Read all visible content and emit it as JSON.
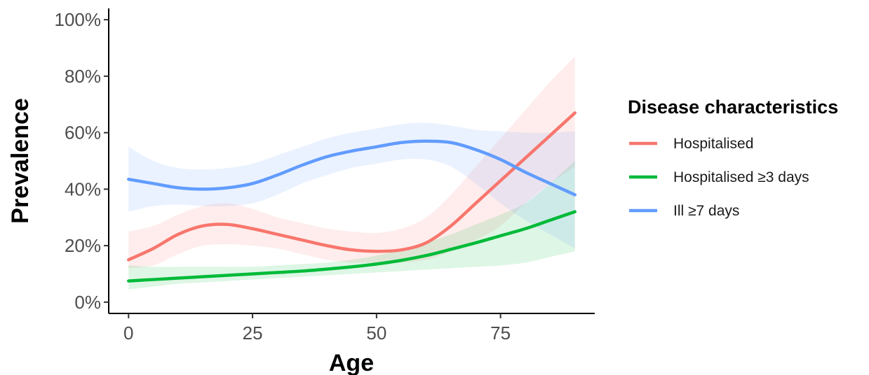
{
  "chart_data": {
    "type": "line",
    "title": "",
    "xlabel": "Age",
    "ylabel": "Prevalence",
    "xlim": [
      -4,
      94
    ],
    "ylim": [
      -4,
      104
    ],
    "x_ticks": [
      0,
      25,
      50,
      75
    ],
    "y_ticks": [
      0,
      20,
      40,
      60,
      80,
      100
    ],
    "y_tick_labels": [
      "0%",
      "20%",
      "40%",
      "60%",
      "80%",
      "100%"
    ],
    "grid": false,
    "legend_position": "right",
    "legend_title": "Disease characteristics",
    "series": [
      {
        "name": "Hospitalised",
        "color": "#F8766D",
        "x": [
          0,
          5,
          10,
          15,
          20,
          25,
          30,
          35,
          40,
          45,
          50,
          55,
          60,
          65,
          70,
          75,
          80,
          85,
          90
        ],
        "y": [
          15,
          19,
          24,
          27,
          27.5,
          26,
          24,
          22,
          20,
          18.5,
          18,
          18.5,
          21,
          27,
          35,
          43,
          51,
          59,
          67
        ],
        "lower": [
          12,
          13,
          17,
          20,
          20.5,
          20,
          19,
          17,
          15,
          14,
          14,
          14,
          15,
          18,
          22,
          27,
          35,
          42,
          48
        ],
        "upper": [
          25,
          27,
          31,
          34,
          35,
          33,
          30,
          28,
          26,
          25,
          24.5,
          26,
          30,
          38,
          48,
          58,
          68,
          78,
          87
        ]
      },
      {
        "name": "Hospitalised ≥3 days",
        "color": "#00BA38",
        "x": [
          0,
          5,
          10,
          15,
          20,
          25,
          30,
          35,
          40,
          45,
          50,
          55,
          60,
          65,
          70,
          75,
          80,
          85,
          90
        ],
        "y": [
          7.5,
          8,
          8.5,
          9,
          9.5,
          10,
          10.5,
          11,
          11.7,
          12.5,
          13.5,
          14.8,
          16.5,
          18.7,
          21,
          23.5,
          26,
          29,
          32
        ],
        "lower": [
          4.5,
          5.5,
          6.5,
          7,
          7.5,
          8,
          8.5,
          9,
          9.5,
          10,
          10.5,
          11,
          11.5,
          12,
          12.5,
          13,
          14,
          16,
          18
        ],
        "upper": [
          13,
          12.5,
          12.5,
          12.5,
          12.5,
          12.5,
          13,
          13.5,
          14,
          15,
          16.5,
          18.5,
          21,
          24,
          27.5,
          31,
          35,
          42,
          50
        ]
      },
      {
        "name": "Ill ≥7 days",
        "color": "#619CFF",
        "x": [
          0,
          5,
          10,
          15,
          20,
          25,
          30,
          35,
          40,
          45,
          50,
          55,
          60,
          65,
          70,
          75,
          80,
          85,
          90
        ],
        "y": [
          43.5,
          42,
          40.5,
          40,
          40.5,
          42,
          45,
          48.5,
          51.5,
          53.5,
          55,
          56.5,
          57,
          56.5,
          54,
          50.5,
          46,
          42,
          38
        ],
        "lower": [
          32,
          34,
          34.5,
          34,
          34,
          35,
          38,
          42,
          45,
          47.5,
          49,
          50.5,
          50.5,
          48,
          42,
          35,
          29,
          24,
          19
        ],
        "upper": [
          55,
          50,
          47.5,
          47,
          47.5,
          49,
          52,
          55,
          58,
          60,
          61.5,
          63,
          63.5,
          62.5,
          61,
          60.5,
          60,
          60,
          60.5
        ]
      }
    ]
  }
}
